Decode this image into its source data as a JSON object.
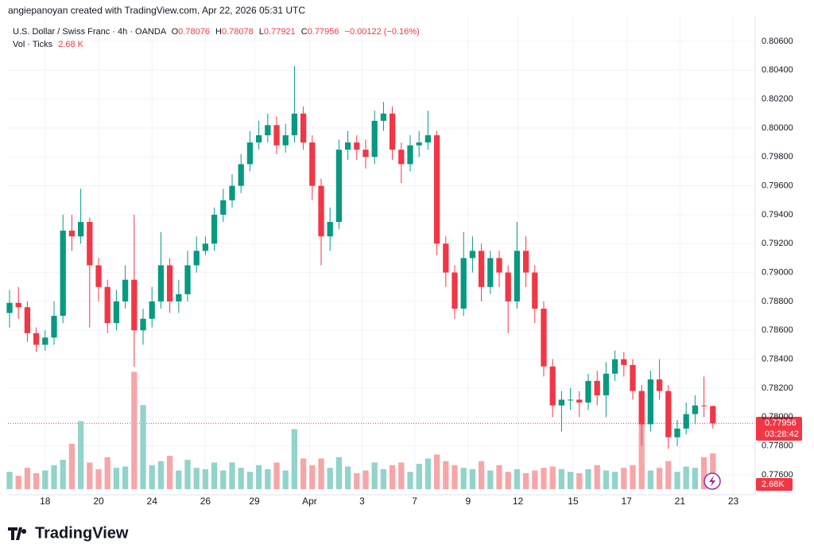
{
  "header": {
    "credit": "angiepanoyan created with TradingView.com, Apr 22, 2026 05:31 UTC",
    "logo": "TradingView"
  },
  "chart_data": {
    "type": "candlestick",
    "title": "U.S. Dollar / Swiss Franc · 4h · OANDA",
    "legend_labels": {
      "open": "O",
      "high": "H",
      "low": "L",
      "close": "C"
    },
    "change": "−0.00122 (−0.16%)",
    "volume_title": "Vol · Ticks",
    "volume_text": "2.68 K",
    "countdown": "03:28:42",
    "volume_tag": "2.68K",
    "up_color": "#089981",
    "down_color": "#f23645",
    "volume_up_color": "#92d3cb",
    "volume_down_color": "#f7a6a8",
    "grid": true,
    "x": [
      0,
      1,
      2,
      3,
      4,
      5,
      6,
      7,
      8,
      9,
      10,
      11,
      12,
      13,
      14,
      15,
      16,
      17,
      18,
      19,
      20,
      21,
      22,
      23,
      24,
      25,
      26,
      27,
      28,
      29,
      30,
      31,
      32,
      33,
      34,
      35,
      36,
      37,
      38,
      39,
      40,
      41,
      42,
      43,
      44,
      45,
      46,
      47,
      48,
      49,
      50,
      51,
      52,
      53,
      54,
      55,
      56,
      57,
      58,
      59,
      60,
      61,
      62,
      63,
      64,
      65,
      66,
      67,
      68,
      69,
      70,
      71,
      72,
      73,
      74,
      75,
      76,
      77,
      78,
      79
    ],
    "open": [
      0.7872,
      0.7879,
      0.7876,
      0.7858,
      0.785,
      0.7855,
      0.787,
      0.7929,
      0.7925,
      0.7935,
      0.7905,
      0.789,
      0.7865,
      0.788,
      0.7895,
      0.786,
      0.7868,
      0.788,
      0.7905,
      0.788,
      0.7885,
      0.7905,
      0.7915,
      0.792,
      0.794,
      0.795,
      0.796,
      0.7975,
      0.799,
      0.7995,
      0.8002,
      0.7988,
      0.7995,
      0.801,
      0.799,
      0.796,
      0.7925,
      0.7935,
      0.7985,
      0.799,
      0.7985,
      0.798,
      0.8005,
      0.801,
      0.7985,
      0.7975,
      0.7988,
      0.799,
      0.7995,
      0.792,
      0.79,
      0.7875,
      0.791,
      0.7915,
      0.789,
      0.791,
      0.79,
      0.788,
      0.7915,
      0.79,
      0.7875,
      0.7835,
      0.7808,
      0.7812,
      0.7812,
      0.781,
      0.7825,
      0.7815,
      0.783,
      0.784,
      0.7836,
      0.7818,
      0.7795,
      0.7826,
      0.7818,
      0.7786,
      0.7792,
      0.7802,
      0.7808,
      0.78076
    ],
    "high": [
      0.7888,
      0.789,
      0.788,
      0.7862,
      0.786,
      0.788,
      0.794,
      0.794,
      0.7958,
      0.7938,
      0.791,
      0.7895,
      0.7888,
      0.7905,
      0.794,
      0.7875,
      0.789,
      0.7928,
      0.791,
      0.7895,
      0.7915,
      0.7925,
      0.7925,
      0.7945,
      0.7958,
      0.7968,
      0.7982,
      0.7998,
      0.8005,
      0.801,
      0.8008,
      0.8003,
      0.8043,
      0.8015,
      0.7995,
      0.7965,
      0.7945,
      0.7992,
      0.7998,
      0.7995,
      0.7992,
      0.8012,
      0.8018,
      0.8015,
      0.799,
      0.7995,
      0.7998,
      0.8012,
      0.7998,
      0.7925,
      0.7905,
      0.7928,
      0.7925,
      0.792,
      0.7915,
      0.7915,
      0.7905,
      0.7935,
      0.7925,
      0.7905,
      0.788,
      0.784,
      0.7818,
      0.782,
      0.7818,
      0.783,
      0.7832,
      0.7838,
      0.7846,
      0.7845,
      0.784,
      0.7822,
      0.7832,
      0.784,
      0.7822,
      0.7798,
      0.781,
      0.7815,
      0.7828,
      0.78078
    ],
    "low": [
      0.7862,
      0.7868,
      0.7852,
      0.7845,
      0.7846,
      0.785,
      0.7865,
      0.7915,
      0.792,
      0.7862,
      0.788,
      0.7858,
      0.786,
      0.7875,
      0.7835,
      0.785,
      0.7862,
      0.7875,
      0.7872,
      0.7872,
      0.788,
      0.79,
      0.7912,
      0.7915,
      0.7935,
      0.7945,
      0.7955,
      0.797,
      0.7985,
      0.799,
      0.7982,
      0.7983,
      0.799,
      0.7985,
      0.795,
      0.7905,
      0.7915,
      0.793,
      0.7978,
      0.7978,
      0.7972,
      0.7975,
      0.7998,
      0.7978,
      0.7962,
      0.797,
      0.798,
      0.7985,
      0.7912,
      0.789,
      0.7868,
      0.787,
      0.79,
      0.788,
      0.7885,
      0.789,
      0.7858,
      0.7875,
      0.789,
      0.7865,
      0.7828,
      0.78,
      0.779,
      0.7805,
      0.78,
      0.7805,
      0.7808,
      0.78,
      0.7825,
      0.7828,
      0.7812,
      0.778,
      0.779,
      0.7812,
      0.7778,
      0.778,
      0.7788,
      0.7795,
      0.78,
      0.77921
    ],
    "close": [
      0.7879,
      0.7876,
      0.7858,
      0.785,
      0.7855,
      0.787,
      0.7929,
      0.7925,
      0.7935,
      0.7905,
      0.789,
      0.7865,
      0.788,
      0.7895,
      0.786,
      0.7868,
      0.788,
      0.7905,
      0.788,
      0.7885,
      0.7905,
      0.7915,
      0.792,
      0.794,
      0.795,
      0.796,
      0.7975,
      0.799,
      0.7995,
      0.8002,
      0.7988,
      0.7995,
      0.801,
      0.799,
      0.796,
      0.7925,
      0.7935,
      0.7985,
      0.799,
      0.7985,
      0.798,
      0.8005,
      0.801,
      0.7985,
      0.7975,
      0.7988,
      0.799,
      0.7995,
      0.792,
      0.79,
      0.7875,
      0.791,
      0.7915,
      0.789,
      0.791,
      0.79,
      0.788,
      0.7915,
      0.79,
      0.7875,
      0.7835,
      0.7808,
      0.7812,
      0.7812,
      0.781,
      0.7825,
      0.7815,
      0.783,
      0.784,
      0.7836,
      0.7818,
      0.7795,
      0.7826,
      0.7818,
      0.7786,
      0.7792,
      0.7802,
      0.7808,
      0.78076,
      0.77956
    ],
    "volume": [
      1.3,
      1.0,
      1.6,
      1.2,
      1.4,
      1.8,
      2.2,
      3.4,
      5.1,
      2.0,
      1.5,
      2.4,
      1.6,
      1.7,
      8.8,
      6.3,
      1.8,
      2.1,
      2.5,
      1.4,
      2.2,
      1.6,
      1.5,
      2.0,
      1.4,
      2.0,
      1.6,
      1.3,
      1.8,
      1.5,
      2.0,
      1.4,
      4.5,
      2.3,
      1.8,
      2.3,
      1.6,
      2.4,
      1.7,
      1.2,
      1.4,
      2.0,
      1.5,
      1.8,
      2.0,
      1.3,
      1.9,
      2.3,
      2.6,
      2.1,
      1.8,
      1.6,
      1.5,
      2.1,
      1.4,
      1.8,
      1.3,
      1.5,
      1.2,
      1.4,
      1.6,
      1.7,
      1.5,
      1.3,
      1.2,
      1.5,
      1.8,
      1.4,
      1.3,
      1.6,
      1.8,
      4.9,
      1.4,
      1.6,
      2.1,
      1.3,
      1.7,
      1.6,
      2.4,
      2.68
    ],
    "xlim": [
      -0.18,
      83.75
    ],
    "ylim": [
      0.77473,
      0.80776
    ],
    "vlim": [
      0,
      9
    ],
    "xticks": [
      {
        "value": 4,
        "label": "18"
      },
      {
        "value": 10,
        "label": "20"
      },
      {
        "value": 16,
        "label": "24"
      },
      {
        "value": 22,
        "label": "26"
      },
      {
        "value": 27.5,
        "label": "29"
      },
      {
        "value": 33.7,
        "label": "Apr"
      },
      {
        "value": 39.6,
        "label": "3"
      },
      {
        "value": 45.5,
        "label": "7"
      },
      {
        "value": 51.5,
        "label": "9"
      },
      {
        "value": 57.1,
        "label": "12"
      },
      {
        "value": 63.3,
        "label": "15"
      },
      {
        "value": 69.3,
        "label": "17"
      },
      {
        "value": 75.3,
        "label": "21"
      },
      {
        "value": 81.3,
        "label": "23"
      }
    ],
    "yticks": [
      {
        "value": 0.806,
        "label": "0.80600"
      },
      {
        "value": 0.804,
        "label": "0.80400"
      },
      {
        "value": 0.802,
        "label": "0.80200"
      },
      {
        "value": 0.8,
        "label": "0.80000"
      },
      {
        "value": 0.798,
        "label": "0.79800"
      },
      {
        "value": 0.796,
        "label": "0.79600"
      },
      {
        "value": 0.794,
        "label": "0.79400"
      },
      {
        "value": 0.792,
        "label": "0.79200"
      },
      {
        "value": 0.79,
        "label": "0.79000"
      },
      {
        "value": 0.788,
        "label": "0.78800"
      },
      {
        "value": 0.786,
        "label": "0.78600"
      },
      {
        "value": 0.784,
        "label": "0.78400"
      },
      {
        "value": 0.782,
        "label": "0.78200"
      },
      {
        "value": 0.78,
        "label": "0.78000"
      },
      {
        "value": 0.778,
        "label": "0.77800"
      },
      {
        "value": 0.776,
        "label": "0.77600"
      }
    ]
  }
}
